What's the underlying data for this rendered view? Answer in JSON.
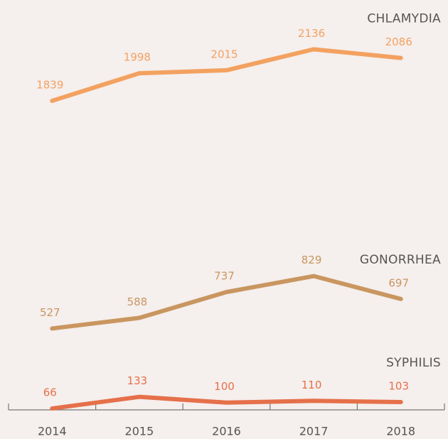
{
  "chart_data": {
    "type": "line",
    "categories": [
      "2014",
      "2015",
      "2016",
      "2017",
      "2018"
    ],
    "series": [
      {
        "name": "CHLAMYDIA",
        "color": "#f3a160",
        "values": [
          1839,
          1998,
          2015,
          2136,
          2086
        ]
      },
      {
        "name": "GONORRHEA",
        "color": "#c99660",
        "values": [
          527,
          588,
          737,
          829,
          697
        ]
      },
      {
        "name": "SYPHILIS",
        "color": "#e5704a",
        "values": [
          66,
          133,
          100,
          110,
          103
        ]
      }
    ],
    "ylim": [
      58,
      2420
    ]
  }
}
